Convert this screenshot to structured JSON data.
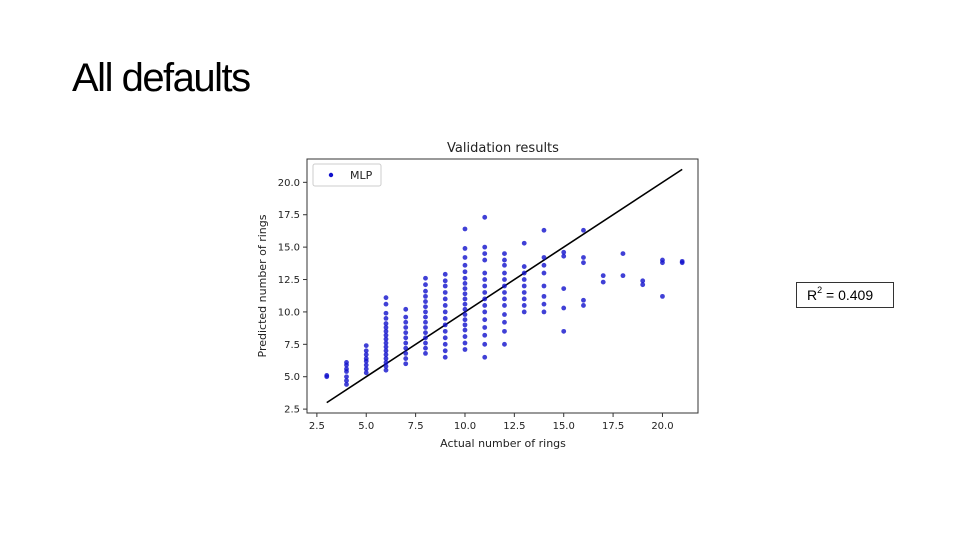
{
  "slide": {
    "title": "All defaults"
  },
  "annotation": {
    "r2_label": "R",
    "r2_sup": "2",
    "r2_rest": " = 0.409"
  },
  "chart_data": {
    "type": "scatter",
    "title": "Validation results",
    "xlabel": "Actual number of rings",
    "ylabel": "Predicted number of rings",
    "xlim": [
      2.0,
      21.8
    ],
    "ylim": [
      2.2,
      21.8
    ],
    "xticks": [
      "2.5",
      "5.0",
      "7.5",
      "10.0",
      "12.5",
      "15.0",
      "17.5",
      "20.0"
    ],
    "yticks": [
      "2.5",
      "5.0",
      "7.5",
      "10.0",
      "12.5",
      "15.0",
      "17.5",
      "20.0"
    ],
    "legend": {
      "placement": "top-left",
      "entries": [
        "MLP"
      ]
    },
    "colors": {
      "points": "#1010cc",
      "line": "#000000"
    },
    "grid": false,
    "reference_line": {
      "name": "",
      "from": [
        3,
        3
      ],
      "to": [
        21,
        21
      ]
    },
    "series": [
      {
        "name": "MLP",
        "columns": [
          {
            "x": 3,
            "y": [
              5.0,
              5.1
            ]
          },
          {
            "x": 4,
            "y": [
              4.4,
              4.7,
              5.0,
              5.4,
              5.6,
              5.9,
              6.1
            ]
          },
          {
            "x": 5,
            "y": [
              5.3,
              5.6,
              5.9,
              6.2,
              6.4,
              6.7,
              7.0,
              7.4
            ]
          },
          {
            "x": 6,
            "y": [
              5.5,
              5.8,
              6.1,
              6.4,
              6.7,
              7.0,
              7.3,
              7.6,
              7.9,
              8.2,
              8.5,
              8.8,
              9.1,
              9.5,
              9.9,
              10.6,
              11.1
            ]
          },
          {
            "x": 7,
            "y": [
              6.0,
              6.4,
              6.8,
              7.2,
              7.6,
              8.0,
              8.4,
              8.8,
              9.2,
              9.6,
              10.2
            ]
          },
          {
            "x": 8,
            "y": [
              6.8,
              7.2,
              7.6,
              8.0,
              8.4,
              8.8,
              9.2,
              9.6,
              10.0,
              10.4,
              10.8,
              11.2,
              11.6,
              12.1,
              12.6
            ]
          },
          {
            "x": 9,
            "y": [
              6.5,
              7.0,
              7.5,
              8.0,
              8.5,
              9.0,
              9.5,
              10.0,
              10.5,
              11.0,
              11.5,
              12.0,
              12.4,
              12.9
            ]
          },
          {
            "x": 10,
            "y": [
              7.1,
              7.6,
              8.1,
              8.6,
              9.0,
              9.4,
              9.8,
              10.2,
              10.6,
              11.0,
              11.4,
              11.8,
              12.2,
              12.6,
              13.1,
              13.6,
              14.2,
              14.9,
              16.4
            ]
          },
          {
            "x": 11,
            "y": [
              6.5,
              7.5,
              8.2,
              8.8,
              9.4,
              10.0,
              10.5,
              11.0,
              11.5,
              12.0,
              12.5,
              13.0,
              14.0,
              14.5,
              15.0,
              17.3
            ]
          },
          {
            "x": 12,
            "y": [
              7.5,
              8.5,
              9.2,
              9.8,
              10.5,
              11.0,
              11.5,
              12.0,
              12.5,
              13.0,
              13.6,
              14.0,
              14.5
            ]
          },
          {
            "x": 13,
            "y": [
              10.0,
              10.5,
              11.0,
              11.5,
              12.0,
              12.5,
              13.0,
              13.5,
              15.3
            ]
          },
          {
            "x": 14,
            "y": [
              10.0,
              10.6,
              11.2,
              12.0,
              13.0,
              13.6,
              14.2,
              16.3
            ]
          },
          {
            "x": 15,
            "y": [
              8.5,
              10.3,
              11.8,
              14.3,
              14.6
            ]
          },
          {
            "x": 16,
            "y": [
              10.5,
              10.9,
              13.8,
              14.2,
              16.3
            ]
          },
          {
            "x": 17,
            "y": [
              12.3,
              12.8
            ]
          },
          {
            "x": 18,
            "y": [
              12.8,
              14.5
            ]
          },
          {
            "x": 19,
            "y": [
              12.1,
              12.4
            ]
          },
          {
            "x": 20,
            "y": [
              11.2,
              13.8,
              14.0
            ]
          },
          {
            "x": 21,
            "y": [
              13.8,
              13.9
            ]
          }
        ]
      }
    ]
  }
}
